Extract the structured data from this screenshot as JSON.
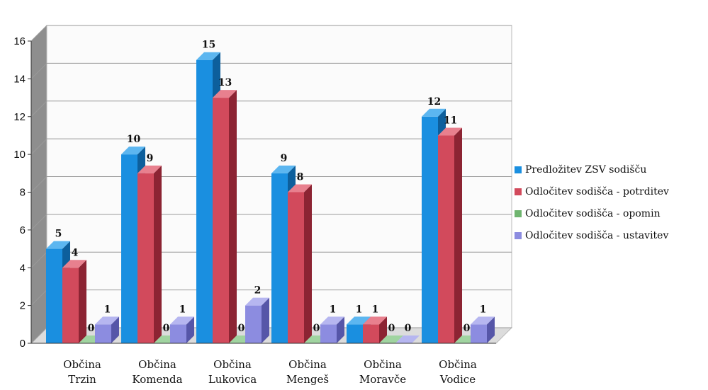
{
  "chart_data": {
    "type": "bar",
    "title": "",
    "xlabel": "",
    "ylabel": "",
    "ylim": [
      0,
      16
    ],
    "yticks": [
      "0",
      "2",
      "4",
      "6",
      "8",
      "10",
      "12",
      "14",
      "16"
    ],
    "categories": [
      [
        "Občina",
        "Trzin"
      ],
      [
        "Občina",
        "Komenda"
      ],
      [
        "Občina",
        "Lukovica"
      ],
      [
        "Občina",
        "Mengeš"
      ],
      [
        "Občina",
        "Moravče"
      ],
      [
        "Občina",
        "Vodice"
      ]
    ],
    "series": [
      {
        "name": "Predložitev ZSV sodišču",
        "color": "#1a8fe0",
        "side": "#0d5f9c",
        "top": "#5cb6f0",
        "values": [
          5,
          10,
          15,
          9,
          1,
          12
        ]
      },
      {
        "name": "Odločitev  sodišča - potrditev",
        "color": "#d24a5c",
        "side": "#8c2433",
        "top": "#e8808e",
        "values": [
          4,
          9,
          13,
          8,
          1,
          11
        ]
      },
      {
        "name": "Odločitev  sodišča - opomin",
        "color": "#6fb56f",
        "side": "#3f7a3f",
        "top": "#a0d4a0",
        "values": [
          0,
          0,
          0,
          0,
          0,
          0
        ]
      },
      {
        "name": "Odločitev  sodišča - ustavitev",
        "color": "#8c8ce0",
        "side": "#5656a8",
        "top": "#b6b6f0",
        "values": [
          1,
          1,
          2,
          1,
          0,
          1
        ]
      }
    ],
    "grid": true,
    "legend_position": "right"
  }
}
